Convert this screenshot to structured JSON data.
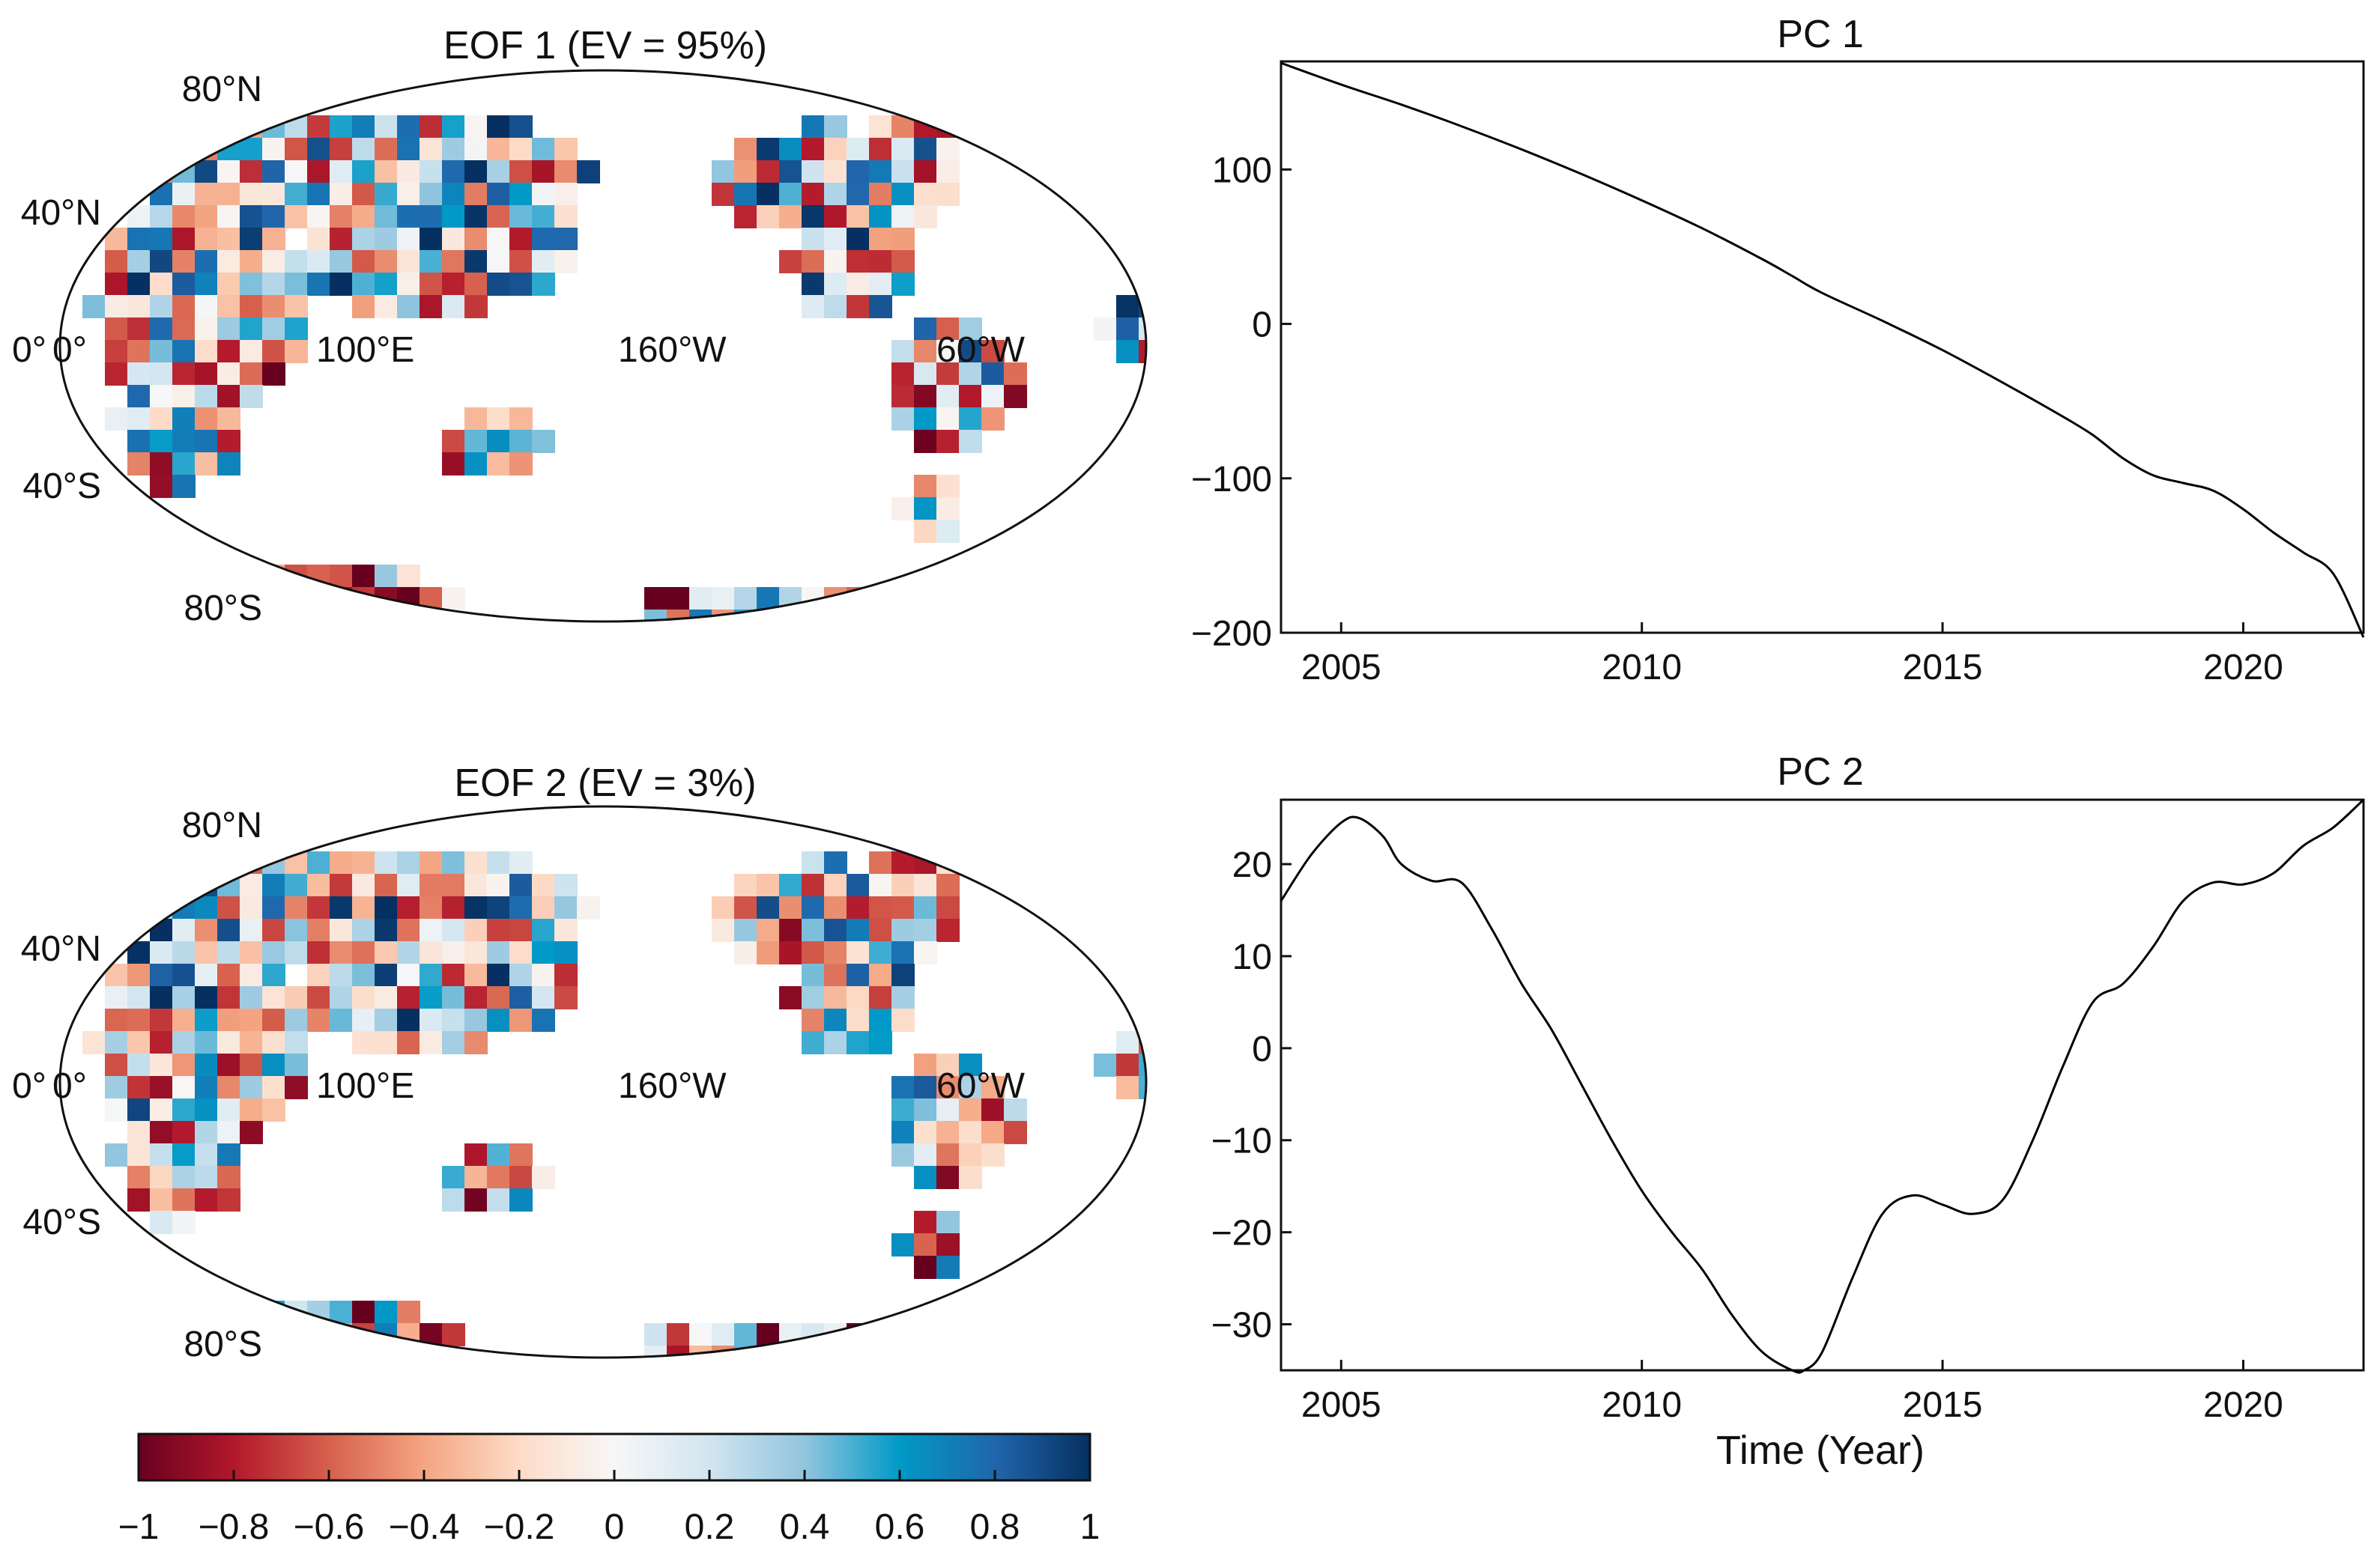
{
  "colorbar": {
    "tick_labels": [
      "−1",
      "−0.8",
      "−0.6",
      "−0.4",
      "−0.2",
      "0",
      "0.2",
      "0.4",
      "0.6",
      "0.8",
      "1"
    ],
    "range": [
      -1,
      1
    ],
    "colors": [
      "#67001f",
      "#b2182b",
      "#d6604d",
      "#f4a582",
      "#fddbc7",
      "#f7f7f7",
      "#d1e5f0",
      "#92c5de",
      "#009ac7",
      "#2166ac",
      "#053061"
    ]
  },
  "maps": [
    {
      "title": "EOF 1 (EV = 95%)",
      "lat_labels": [
        "80°N",
        "40°N",
        "0°",
        "40°S",
        "80°S"
      ],
      "lon_labels": [
        "0°",
        "100°E",
        "160°W",
        "60°W"
      ],
      "seed": 7
    },
    {
      "title": "EOF 2 (EV = 3%)",
      "lat_labels": [
        "80°N",
        "40°N",
        "0°",
        "40°S",
        "80°S"
      ],
      "lon_labels": [
        "0°",
        "100°E",
        "160°W",
        "60°W"
      ],
      "seed": 19
    }
  ],
  "chart_data": [
    {
      "type": "line",
      "title": "PC 1",
      "xlabel": "",
      "ylabel": "",
      "xlim": [
        2004,
        2022
      ],
      "ylim": [
        -200,
        170
      ],
      "xticks": [
        2005,
        2010,
        2015,
        2020
      ],
      "yticks": [
        -200,
        -100,
        0,
        100
      ],
      "ytick_labels": [
        "−200",
        "−100",
        "0",
        "100"
      ],
      "series": [
        {
          "name": "PC 1",
          "x": [
            2004,
            2005,
            2006,
            2007,
            2008,
            2009,
            2010,
            2011,
            2012,
            2012.5,
            2013,
            2014,
            2015,
            2016,
            2017,
            2017.5,
            2018,
            2018.5,
            2019,
            2019.5,
            2020,
            2020.5,
            2021,
            2021.5,
            2022
          ],
          "y": [
            169,
            155,
            142,
            128,
            113,
            97,
            80,
            62,
            42,
            31,
            20,
            2,
            -17,
            -38,
            -60,
            -72,
            -87,
            -98,
            -103,
            -108,
            -120,
            -135,
            -148,
            -162,
            -203
          ]
        }
      ]
    },
    {
      "type": "line",
      "title": "PC 2",
      "xlabel": "Time (Year)",
      "ylabel": "",
      "xlim": [
        2004,
        2022
      ],
      "ylim": [
        -35,
        27
      ],
      "xticks": [
        2005,
        2010,
        2015,
        2020
      ],
      "yticks": [
        -30,
        -20,
        -10,
        0,
        10,
        20
      ],
      "ytick_labels": [
        "−30",
        "−20",
        "−10",
        "0",
        "10",
        "20"
      ],
      "series": [
        {
          "name": "PC 2",
          "x": [
            2004,
            2004.5,
            2005,
            2005.3,
            2005.7,
            2006,
            2006.5,
            2007,
            2007.5,
            2008,
            2008.5,
            2009,
            2009.5,
            2010,
            2010.5,
            2011,
            2011.5,
            2012,
            2012.5,
            2012.7,
            2013,
            2013.5,
            2014,
            2014.5,
            2015,
            2015.5,
            2016,
            2016.5,
            2017,
            2017.5,
            2018,
            2018.5,
            2019,
            2019.5,
            2020,
            2020.5,
            2021,
            2021.5,
            2022
          ],
          "y": [
            16,
            21,
            24.5,
            25,
            23,
            20,
            18.2,
            18,
            13,
            7,
            2,
            -4,
            -10,
            -15.5,
            -20,
            -24,
            -29,
            -33,
            -35,
            -35,
            -33,
            -25,
            -18,
            -16,
            -17,
            -18,
            -16.5,
            -10,
            -2,
            5,
            7,
            11,
            16,
            18,
            17.8,
            19,
            22,
            24,
            27
          ]
        }
      ]
    }
  ]
}
